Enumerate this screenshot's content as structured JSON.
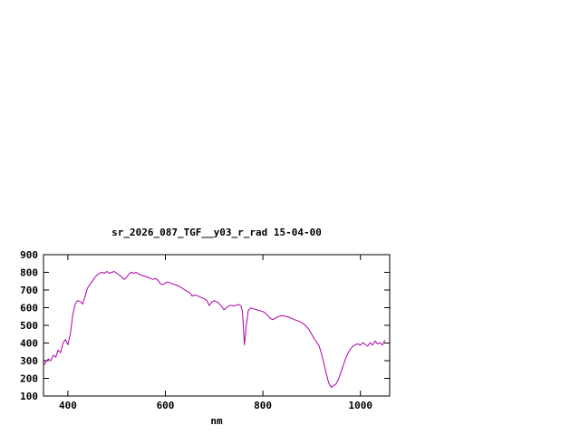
{
  "chart_data": {
    "type": "line",
    "title": "sr_2026_087_TGF__y03_r_rad 15-04-00",
    "xlabel": "nm",
    "ylabel": "",
    "xlim": [
      350,
      1060
    ],
    "ylim": [
      100,
      900
    ],
    "xticks": [
      400,
      600,
      800,
      1000
    ],
    "yticks": [
      100,
      200,
      300,
      400,
      500,
      600,
      700,
      800,
      900
    ],
    "grid": false,
    "legend": "none",
    "axis_color": "#000000",
    "background_color": "#ffffff",
    "series": [
      {
        "name": "sr_2026_087_TGF__y03_r_rad",
        "color": "#aa00aa",
        "points": [
          [
            350,
            270
          ],
          [
            355,
            295
          ],
          [
            360,
            310
          ],
          [
            365,
            300
          ],
          [
            370,
            330
          ],
          [
            375,
            320
          ],
          [
            380,
            360
          ],
          [
            385,
            345
          ],
          [
            390,
            400
          ],
          [
            395,
            420
          ],
          [
            400,
            390
          ],
          [
            405,
            450
          ],
          [
            410,
            560
          ],
          [
            415,
            620
          ],
          [
            420,
            640
          ],
          [
            425,
            635
          ],
          [
            430,
            620
          ],
          [
            435,
            660
          ],
          [
            440,
            710
          ],
          [
            445,
            730
          ],
          [
            450,
            750
          ],
          [
            455,
            770
          ],
          [
            460,
            785
          ],
          [
            465,
            795
          ],
          [
            470,
            800
          ],
          [
            475,
            795
          ],
          [
            480,
            805
          ],
          [
            485,
            795
          ],
          [
            490,
            800
          ],
          [
            495,
            805
          ],
          [
            500,
            795
          ],
          [
            505,
            785
          ],
          [
            510,
            775
          ],
          [
            515,
            760
          ],
          [
            520,
            770
          ],
          [
            525,
            790
          ],
          [
            530,
            800
          ],
          [
            535,
            795
          ],
          [
            540,
            800
          ],
          [
            545,
            790
          ],
          [
            550,
            785
          ],
          [
            555,
            780
          ],
          [
            560,
            775
          ],
          [
            565,
            770
          ],
          [
            570,
            765
          ],
          [
            575,
            760
          ],
          [
            580,
            765
          ],
          [
            585,
            755
          ],
          [
            590,
            735
          ],
          [
            595,
            730
          ],
          [
            600,
            740
          ],
          [
            605,
            745
          ],
          [
            610,
            740
          ],
          [
            615,
            735
          ],
          [
            620,
            730
          ],
          [
            625,
            725
          ],
          [
            630,
            718
          ],
          [
            635,
            710
          ],
          [
            640,
            700
          ],
          [
            645,
            692
          ],
          [
            650,
            685
          ],
          [
            655,
            665
          ],
          [
            660,
            672
          ],
          [
            665,
            668
          ],
          [
            670,
            662
          ],
          [
            675,
            656
          ],
          [
            680,
            650
          ],
          [
            685,
            640
          ],
          [
            690,
            612
          ],
          [
            695,
            632
          ],
          [
            700,
            640
          ],
          [
            705,
            634
          ],
          [
            710,
            624
          ],
          [
            715,
            608
          ],
          [
            720,
            588
          ],
          [
            725,
            598
          ],
          [
            730,
            610
          ],
          [
            735,
            614
          ],
          [
            740,
            610
          ],
          [
            745,
            614
          ],
          [
            750,
            618
          ],
          [
            755,
            610
          ],
          [
            758,
            580
          ],
          [
            762,
            390
          ],
          [
            766,
            500
          ],
          [
            770,
            585
          ],
          [
            775,
            598
          ],
          [
            780,
            594
          ],
          [
            785,
            590
          ],
          [
            790,
            586
          ],
          [
            795,
            582
          ],
          [
            800,
            578
          ],
          [
            805,
            570
          ],
          [
            810,
            556
          ],
          [
            815,
            540
          ],
          [
            820,
            532
          ],
          [
            825,
            540
          ],
          [
            830,
            548
          ],
          [
            835,
            552
          ],
          [
            840,
            556
          ],
          [
            845,
            552
          ],
          [
            850,
            548
          ],
          [
            855,
            544
          ],
          [
            860,
            538
          ],
          [
            865,
            532
          ],
          [
            870,
            527
          ],
          [
            875,
            522
          ],
          [
            880,
            515
          ],
          [
            885,
            505
          ],
          [
            890,
            492
          ],
          [
            895,
            475
          ],
          [
            900,
            450
          ],
          [
            905,
            425
          ],
          [
            910,
            405
          ],
          [
            915,
            385
          ],
          [
            920,
            340
          ],
          [
            925,
            285
          ],
          [
            930,
            225
          ],
          [
            935,
            175
          ],
          [
            940,
            150
          ],
          [
            945,
            158
          ],
          [
            950,
            168
          ],
          [
            955,
            195
          ],
          [
            960,
            235
          ],
          [
            965,
            275
          ],
          [
            970,
            315
          ],
          [
            975,
            345
          ],
          [
            980,
            368
          ],
          [
            985,
            382
          ],
          [
            990,
            390
          ],
          [
            995,
            395
          ],
          [
            1000,
            388
          ],
          [
            1005,
            402
          ],
          [
            1010,
            392
          ],
          [
            1015,
            382
          ],
          [
            1020,
            402
          ],
          [
            1025,
            388
          ],
          [
            1030,
            412
          ],
          [
            1035,
            395
          ],
          [
            1040,
            402
          ],
          [
            1045,
            388
          ],
          [
            1050,
            415
          ]
        ]
      }
    ]
  }
}
